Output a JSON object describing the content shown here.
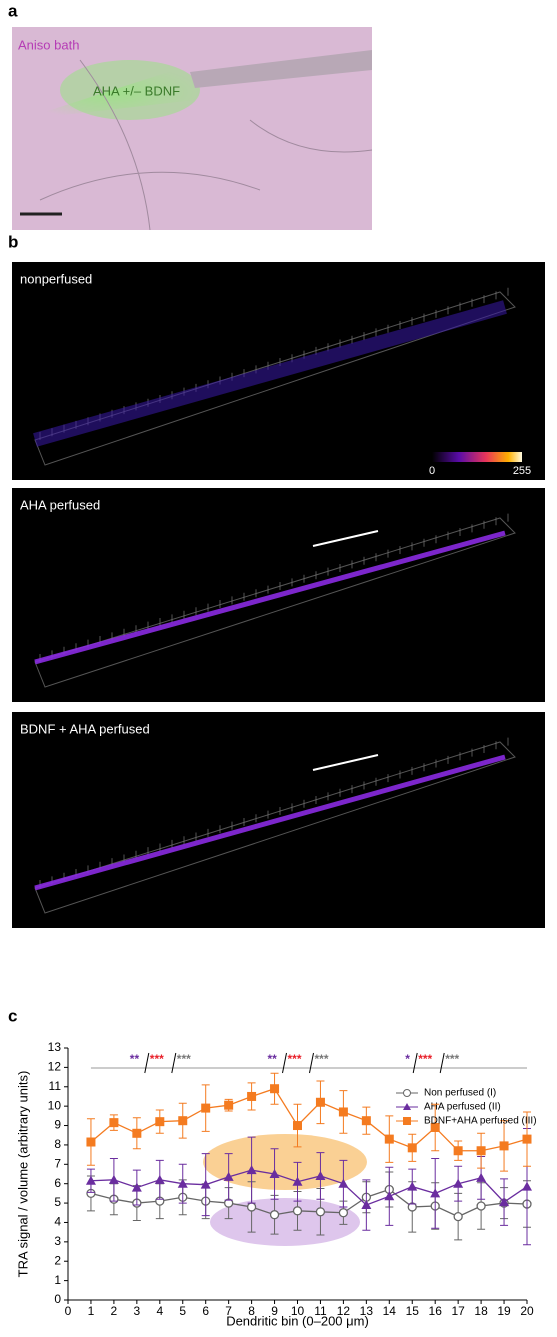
{
  "panel_a": {
    "label": "a",
    "bath": "Aniso bath",
    "pipette": "AHA +/– BDNF"
  },
  "panel_b": {
    "label": "b",
    "images": [
      "nonperfused",
      "AHA perfused",
      "BDNF + AHA perfused"
    ],
    "colorbar": {
      "min": 0,
      "max": 255
    }
  },
  "panel_c": {
    "label": "c"
  },
  "chart_data": {
    "type": "line",
    "xlabel": "Dendritic bin (0–200 μm)",
    "ylabel": "TRA signal / volume (arbitrary units)",
    "x": [
      1,
      2,
      3,
      4,
      5,
      6,
      7,
      8,
      9,
      10,
      11,
      12,
      13,
      14,
      15,
      16,
      17,
      18,
      19,
      20
    ],
    "xlim": [
      0,
      20
    ],
    "xticks": [
      0,
      1,
      2,
      3,
      4,
      5,
      6,
      7,
      8,
      9,
      10,
      11,
      12,
      13,
      14,
      15,
      16,
      17,
      18,
      19,
      20
    ],
    "ylim": [
      0,
      13
    ],
    "yticks": [
      0,
      1,
      2,
      3,
      4,
      5,
      6,
      7,
      8,
      9,
      10,
      11,
      12,
      13
    ],
    "legend": "upper right",
    "series": [
      {
        "name": "Non perfused (I)",
        "color": "#666666",
        "marker": "circle",
        "values": [
          5.5,
          5.2,
          5.0,
          5.1,
          5.3,
          5.1,
          5.0,
          4.8,
          4.4,
          4.6,
          4.55,
          4.5,
          5.3,
          5.7,
          4.8,
          4.85,
          4.3,
          4.85,
          5.0,
          4.95
        ],
        "errors": [
          0.9,
          0.8,
          0.9,
          0.9,
          0.9,
          0.9,
          0.8,
          1.3,
          1.0,
          1.0,
          1.2,
          0.6,
          0.8,
          0.9,
          1.3,
          1.2,
          1.2,
          1.2,
          0.8,
          1.2
        ]
      },
      {
        "name": "AHA perfused (II)",
        "color": "#6a2d9f",
        "marker": "triangle",
        "values": [
          6.15,
          6.2,
          5.8,
          6.2,
          6.0,
          5.95,
          6.35,
          6.7,
          6.5,
          6.1,
          6.4,
          6.0,
          4.9,
          5.35,
          5.85,
          5.5,
          6.0,
          6.3,
          5.05,
          5.85
        ],
        "errors": [
          0.6,
          1.1,
          0.9,
          1.0,
          1.0,
          1.6,
          1.2,
          1.7,
          1.3,
          1.0,
          1.2,
          1.2,
          1.3,
          1.5,
          0.9,
          1.8,
          0.9,
          1.1,
          1.2,
          3.0
        ]
      },
      {
        "name": "BDNF+AHA perfused (III)",
        "color": "#f47b20",
        "marker": "square",
        "values": [
          8.15,
          9.15,
          8.6,
          9.2,
          9.25,
          9.9,
          10.05,
          10.5,
          10.9,
          9.0,
          10.2,
          9.7,
          9.25,
          8.3,
          7.85,
          8.9,
          7.7,
          7.7,
          7.95,
          8.3
        ],
        "errors": [
          1.2,
          0.4,
          0.8,
          0.6,
          0.9,
          1.2,
          0.3,
          0.7,
          0.8,
          1.1,
          1.1,
          1.1,
          0.7,
          1.2,
          0.7,
          1.2,
          0.5,
          0.9,
          1.3,
          1.4
        ]
      }
    ],
    "annotations": [
      [
        {
          "text": "**",
          "color": "#6a2d9f"
        },
        {
          "text": "***",
          "color": "#e8202a"
        },
        {
          "text": "***",
          "color": "#777777"
        }
      ],
      [
        {
          "text": "**",
          "color": "#6a2d9f"
        },
        {
          "text": "***",
          "color": "#e8202a"
        },
        {
          "text": "***",
          "color": "#777777"
        }
      ],
      [
        {
          "text": "*",
          "color": "#6a2d9f"
        },
        {
          "text": "***",
          "color": "#e8202a"
        },
        {
          "text": "***",
          "color": "#777777"
        }
      ]
    ]
  }
}
